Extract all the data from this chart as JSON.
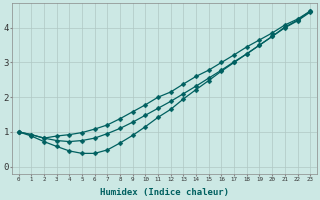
{
  "xlabel": "Humidex (Indice chaleur)",
  "bg_color": "#cce8e4",
  "line_color": "#006060",
  "grid_color": "#b0c8c4",
  "xlim": [
    -0.5,
    23.5
  ],
  "ylim": [
    -0.2,
    4.7
  ],
  "ytick_values": [
    0,
    1,
    2,
    3,
    4
  ],
  "line1_x": [
    0,
    1,
    2,
    3,
    4,
    5,
    6,
    7,
    8,
    9,
    10,
    11,
    12,
    13,
    14,
    15,
    16,
    17,
    18,
    19,
    20,
    21,
    22,
    23
  ],
  "line1_y": [
    1.0,
    0.92,
    0.82,
    0.75,
    0.72,
    0.75,
    0.82,
    0.95,
    1.1,
    1.28,
    1.48,
    1.68,
    1.88,
    2.1,
    2.32,
    2.55,
    2.78,
    3.02,
    3.25,
    3.5,
    3.75,
    4.0,
    4.2,
    4.45
  ],
  "line2_x": [
    0,
    1,
    2,
    3,
    4,
    5,
    6,
    7,
    8,
    9,
    10,
    11,
    12,
    13,
    14,
    15,
    16,
    17,
    18,
    19,
    20,
    21,
    22,
    23
  ],
  "line2_y": [
    1.0,
    0.92,
    0.82,
    0.88,
    0.92,
    0.98,
    1.08,
    1.2,
    1.38,
    1.58,
    1.78,
    2.0,
    2.15,
    2.38,
    2.6,
    2.78,
    3.0,
    3.22,
    3.45,
    3.65,
    3.85,
    4.08,
    4.25,
    4.48
  ],
  "line3_x": [
    0,
    1,
    2,
    3,
    4,
    5,
    6,
    7,
    8,
    9,
    10,
    11,
    12,
    13,
    14,
    15,
    16,
    17,
    18,
    19,
    20,
    21,
    22,
    23
  ],
  "line3_y": [
    1.0,
    0.88,
    0.72,
    0.58,
    0.45,
    0.38,
    0.38,
    0.48,
    0.68,
    0.9,
    1.15,
    1.42,
    1.65,
    1.95,
    2.22,
    2.48,
    2.75,
    3.0,
    3.25,
    3.5,
    3.75,
    4.02,
    4.22,
    4.48
  ]
}
